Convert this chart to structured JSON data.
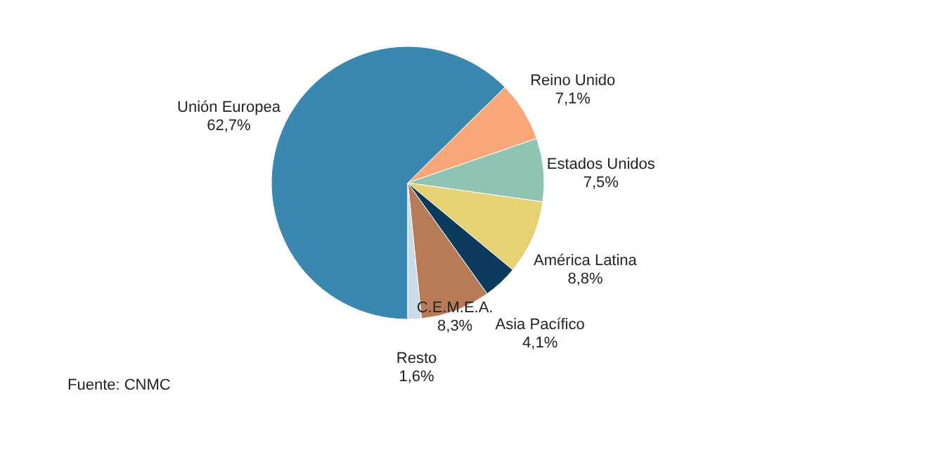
{
  "chart_data": {
    "type": "pie",
    "categories": [
      "Unión Europea",
      "Reino Unido",
      "Estados Unidos",
      "América Latina",
      "Asia Pacífico",
      "C.E.M.E.A.",
      "Resto"
    ],
    "values": [
      62.7,
      7.1,
      7.5,
      8.8,
      4.1,
      8.3,
      1.6
    ],
    "value_labels": [
      "62,7%",
      "7,1%",
      "7,5%",
      "8,8%",
      "4,1%",
      "8,3%",
      "1,6%"
    ],
    "colors": [
      "#3a87b0",
      "#f8a878",
      "#8fc4b5",
      "#e6d274",
      "#0c3a5c",
      "#b77c57",
      "#c8dce8"
    ],
    "annotations": [
      "Fuente: CNMC"
    ]
  }
}
